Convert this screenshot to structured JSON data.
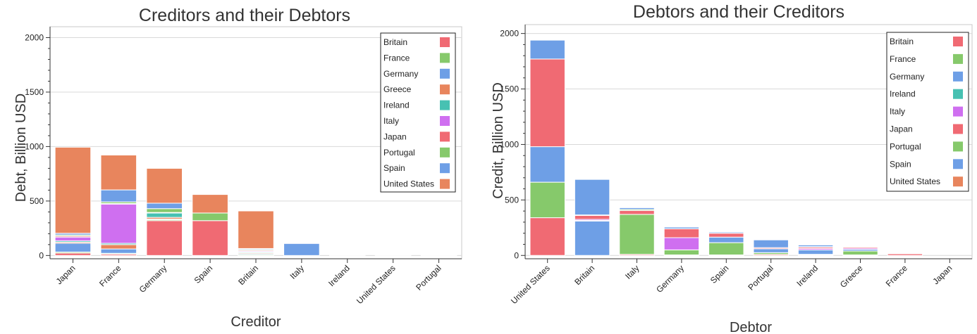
{
  "palette": {
    "Britain": "#f06a73",
    "France": "#86c96b",
    "Germany": "#6e9fe6",
    "Greece": "#e8855d",
    "Ireland": "#47c1b2",
    "Italy": "#cf6ff0",
    "Japan": "#f06a73",
    "Portugal": "#86c96b",
    "Spain": "#6e9fe6",
    "United States": "#e8855d"
  },
  "chart_data": [
    {
      "type": "bar",
      "stacked": true,
      "title": "Creditors and their Debtors",
      "xlabel": "Creditor",
      "ylabel": "Debt, Billion USD",
      "ylim": [
        -30,
        2100
      ],
      "yticks": [
        0,
        500,
        1000,
        1500,
        2000
      ],
      "grid": true,
      "legend_position": "top-right",
      "categories": [
        "Japan",
        "France",
        "Germany",
        "Spain",
        "Britain",
        "Italy",
        "Ireland",
        "United States",
        "Portugal"
      ],
      "series": [
        {
          "name": "Britain",
          "values": [
            22,
            12,
            320,
            320,
            0,
            0,
            5,
            5,
            3
          ]
        },
        {
          "name": "France",
          "values": [
            10,
            8,
            10,
            0,
            8,
            0,
            0,
            0,
            0
          ]
        },
        {
          "name": "Germany",
          "values": [
            80,
            40,
            5,
            0,
            8,
            110,
            0,
            0,
            0
          ]
        },
        {
          "name": "Greece",
          "values": [
            10,
            40,
            15,
            0,
            8,
            0,
            0,
            0,
            0
          ]
        },
        {
          "name": "Ireland",
          "values": [
            12,
            12,
            40,
            0,
            8,
            0,
            0,
            5,
            0
          ]
        },
        {
          "name": "Italy",
          "values": [
            35,
            360,
            0,
            0,
            8,
            0,
            0,
            0,
            0
          ]
        },
        {
          "name": "Japan",
          "values": [
            10,
            5,
            5,
            0,
            8,
            0,
            0,
            0,
            0
          ]
        },
        {
          "name": "Portugal",
          "values": [
            10,
            15,
            35,
            70,
            8,
            0,
            0,
            0,
            0
          ]
        },
        {
          "name": "Spain",
          "values": [
            15,
            110,
            50,
            0,
            8,
            0,
            0,
            0,
            0
          ]
        },
        {
          "name": "United States",
          "values": [
            790,
            320,
            320,
            170,
            345,
            0,
            3,
            0,
            2
          ]
        }
      ]
    },
    {
      "type": "bar",
      "stacked": true,
      "title": "Debtors and their Creditors",
      "xlabel": "Debtor",
      "ylabel": "Credit, Billion USD",
      "ylim": [
        -30,
        2080
      ],
      "yticks": [
        0,
        500,
        1000,
        1500,
        2000
      ],
      "grid": true,
      "legend_position": "top-right",
      "categories": [
        "United States",
        "Britain",
        "Italy",
        "Germany",
        "Spain",
        "Portugal",
        "Ireland",
        "Greece",
        "France",
        "Japan"
      ],
      "series": [
        {
          "name": "Britain",
          "values": [
            340,
            0,
            10,
            5,
            5,
            10,
            5,
            5,
            15,
            0
          ]
        },
        {
          "name": "France",
          "values": [
            320,
            0,
            360,
            45,
            110,
            15,
            5,
            35,
            0,
            0
          ]
        },
        {
          "name": "Germany",
          "values": [
            320,
            310,
            0,
            0,
            50,
            35,
            40,
            15,
            0,
            0
          ]
        },
        {
          "name": "Ireland",
          "values": [
            0,
            5,
            0,
            0,
            0,
            0,
            0,
            0,
            0,
            0
          ]
        },
        {
          "name": "Italy",
          "values": [
            0,
            10,
            0,
            110,
            0,
            0,
            12,
            10,
            0,
            0
          ]
        },
        {
          "name": "Japan",
          "values": [
            790,
            35,
            35,
            80,
            35,
            10,
            12,
            10,
            5,
            0
          ]
        },
        {
          "name": "Portugal",
          "values": [
            0,
            5,
            10,
            0,
            0,
            0,
            5,
            0,
            0,
            0
          ]
        },
        {
          "name": "Spain",
          "values": [
            170,
            320,
            15,
            15,
            10,
            70,
            15,
            5,
            5,
            0
          ]
        },
        {
          "name": "United States",
          "values": [
            0,
            0,
            0,
            0,
            0,
            0,
            0,
            0,
            0,
            0
          ]
        }
      ]
    }
  ]
}
